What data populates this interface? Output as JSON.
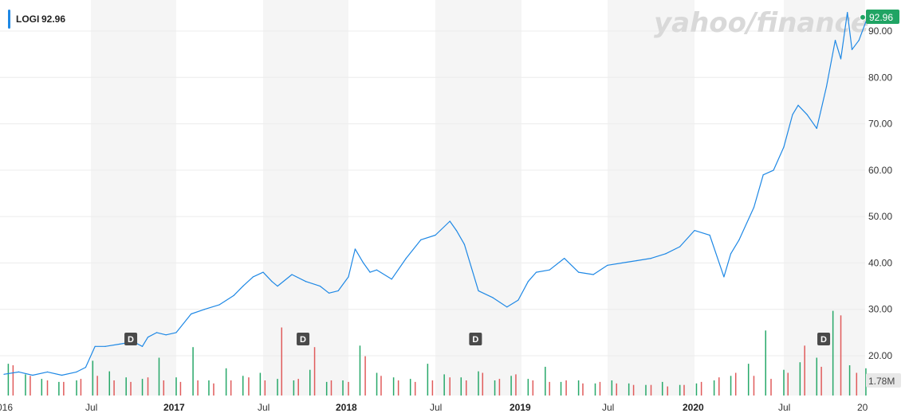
{
  "legend": {
    "symbol": "LOGI",
    "value": "92.96"
  },
  "watermark": "yahoo/finance",
  "price_badge": "92.96",
  "volume_badge": "1.78M",
  "colors": {
    "line": "#1e88e5",
    "badge": "#20a464",
    "band": "#f5f5f5",
    "grid": "#ececec",
    "vol_up": "#27a869",
    "vol_down": "#e05b5b",
    "dividend": "#4a4a4a"
  },
  "chart_data": {
    "type": "line",
    "title": "",
    "series": [
      {
        "name": "LOGI",
        "values": []
      }
    ],
    "y_ticks": [
      "20.00",
      "30.00",
      "40.00",
      "50.00",
      "60.00",
      "70.00",
      "80.00",
      "90.00"
    ],
    "ylim": [
      15,
      95
    ],
    "x_ticks": [
      "016",
      "Jul",
      "2017",
      "Jul",
      "2018",
      "Jul",
      "2019",
      "Jul",
      "2020",
      "Jul",
      "20"
    ],
    "dividend_label": "D",
    "dividends": [
      "2016-09",
      "2017-09",
      "2018-09",
      "2020-09"
    ],
    "price": [
      [
        "2016-01-01",
        16
      ],
      [
        "2016-02-01",
        16.5
      ],
      [
        "2016-03-01",
        15.8
      ],
      [
        "2016-04-01",
        16.5
      ],
      [
        "2016-05-01",
        15.8
      ],
      [
        "2016-06-01",
        16.5
      ],
      [
        "2016-06-20",
        17.5
      ],
      [
        "2016-07-10",
        22
      ],
      [
        "2016-08-01",
        22
      ],
      [
        "2016-09-01",
        22.5
      ],
      [
        "2016-10-01",
        23
      ],
      [
        "2016-10-20",
        22
      ],
      [
        "2016-11-01",
        24
      ],
      [
        "2016-11-20",
        25
      ],
      [
        "2016-12-10",
        24.5
      ],
      [
        "2017-01-01",
        25
      ],
      [
        "2017-02-01",
        29
      ],
      [
        "2017-03-01",
        30
      ],
      [
        "2017-04-01",
        31
      ],
      [
        "2017-05-01",
        33
      ],
      [
        "2017-05-20",
        35
      ],
      [
        "2017-06-10",
        37
      ],
      [
        "2017-07-01",
        38
      ],
      [
        "2017-07-20",
        36
      ],
      [
        "2017-08-01",
        35
      ],
      [
        "2017-09-01",
        37.5
      ],
      [
        "2017-10-01",
        36
      ],
      [
        "2017-11-01",
        35
      ],
      [
        "2017-11-20",
        33.5
      ],
      [
        "2017-12-10",
        34
      ],
      [
        "2018-01-01",
        37
      ],
      [
        "2018-01-15",
        43
      ],
      [
        "2018-02-01",
        40
      ],
      [
        "2018-02-15",
        38
      ],
      [
        "2018-03-01",
        38.5
      ],
      [
        "2018-04-01",
        36.5
      ],
      [
        "2018-05-01",
        41
      ],
      [
        "2018-06-01",
        45
      ],
      [
        "2018-07-01",
        46
      ],
      [
        "2018-08-01",
        49
      ],
      [
        "2018-08-15",
        47
      ],
      [
        "2018-09-01",
        44
      ],
      [
        "2018-10-01",
        34
      ],
      [
        "2018-11-01",
        32.5
      ],
      [
        "2018-12-01",
        30.5
      ],
      [
        "2018-12-25",
        32
      ],
      [
        "2019-01-15",
        36
      ],
      [
        "2019-02-01",
        38
      ],
      [
        "2019-03-01",
        38.5
      ],
      [
        "2019-04-01",
        41
      ],
      [
        "2019-05-01",
        38
      ],
      [
        "2019-06-01",
        37.5
      ],
      [
        "2019-07-01",
        39.5
      ],
      [
        "2019-08-01",
        40
      ],
      [
        "2019-09-01",
        40.5
      ],
      [
        "2019-10-01",
        41
      ],
      [
        "2019-11-01",
        42
      ],
      [
        "2019-12-01",
        43.5
      ],
      [
        "2020-01-01",
        47
      ],
      [
        "2020-02-01",
        46
      ],
      [
        "2020-03-01",
        37
      ],
      [
        "2020-03-15",
        42
      ],
      [
        "2020-04-01",
        45
      ],
      [
        "2020-05-01",
        52
      ],
      [
        "2020-05-20",
        59
      ],
      [
        "2020-06-10",
        60
      ],
      [
        "2020-07-01",
        65
      ],
      [
        "2020-07-20",
        72
      ],
      [
        "2020-08-01",
        74
      ],
      [
        "2020-08-20",
        72
      ],
      [
        "2020-09-10",
        69
      ],
      [
        "2020-10-01",
        78
      ],
      [
        "2020-10-20",
        88
      ],
      [
        "2020-11-01",
        84
      ],
      [
        "2020-11-15",
        94
      ],
      [
        "2020-11-25",
        86
      ],
      [
        "2020-12-10",
        88
      ],
      [
        "2020-12-25",
        92
      ],
      [
        "2021-01-05",
        92.96
      ]
    ],
    "volume_up": [
      [
        "2016-01-10",
        2.1
      ],
      [
        "2016-02-15",
        1.4
      ],
      [
        "2016-03-20",
        1.1
      ],
      [
        "2016-04-25",
        0.9
      ],
      [
        "2016-06-01",
        1.0
      ],
      [
        "2016-07-05",
        2.3
      ],
      [
        "2016-08-10",
        1.6
      ],
      [
        "2016-09-15",
        1.2
      ],
      [
        "2016-10-20",
        1.1
      ],
      [
        "2016-11-25",
        2.5
      ],
      [
        "2017-01-01",
        1.2
      ],
      [
        "2017-02-05",
        3.2
      ],
      [
        "2017-03-10",
        1.0
      ],
      [
        "2017-04-15",
        1.8
      ],
      [
        "2017-05-20",
        1.3
      ],
      [
        "2017-06-25",
        1.5
      ],
      [
        "2017-08-01",
        1.1
      ],
      [
        "2017-09-05",
        1.0
      ],
      [
        "2017-10-10",
        1.7
      ],
      [
        "2017-11-15",
        0.9
      ],
      [
        "2017-12-20",
        1.0
      ],
      [
        "2018-01-25",
        3.3
      ],
      [
        "2018-03-01",
        1.5
      ],
      [
        "2018-04-05",
        1.2
      ],
      [
        "2018-05-10",
        1.1
      ],
      [
        "2018-06-15",
        2.1
      ],
      [
        "2018-07-20",
        1.4
      ],
      [
        "2018-08-25",
        1.2
      ],
      [
        "2018-10-01",
        1.6
      ],
      [
        "2018-11-05",
        1.0
      ],
      [
        "2018-12-10",
        1.3
      ],
      [
        "2019-01-15",
        1.1
      ],
      [
        "2019-02-20",
        1.9
      ],
      [
        "2019-03-25",
        0.9
      ],
      [
        "2019-05-01",
        1.0
      ],
      [
        "2019-06-05",
        0.8
      ],
      [
        "2019-07-10",
        1.0
      ],
      [
        "2019-08-15",
        0.8
      ],
      [
        "2019-09-20",
        0.7
      ],
      [
        "2019-10-25",
        0.9
      ],
      [
        "2019-12-01",
        0.7
      ],
      [
        "2020-01-05",
        0.8
      ],
      [
        "2020-02-10",
        1.0
      ],
      [
        "2020-03-15",
        1.3
      ],
      [
        "2020-04-20",
        2.1
      ],
      [
        "2020-05-25",
        4.3
      ],
      [
        "2020-07-01",
        1.7
      ],
      [
        "2020-08-05",
        2.2
      ],
      [
        "2020-09-10",
        2.5
      ],
      [
        "2020-10-15",
        5.6
      ],
      [
        "2020-11-20",
        2.0
      ],
      [
        "2020-12-25",
        1.8
      ]
    ],
    "volume_down": [
      [
        "2016-01-20",
        2.0
      ],
      [
        "2016-02-25",
        1.3
      ],
      [
        "2016-04-01",
        1.0
      ],
      [
        "2016-05-05",
        0.9
      ],
      [
        "2016-06-10",
        1.1
      ],
      [
        "2016-07-15",
        1.3
      ],
      [
        "2016-08-20",
        1.0
      ],
      [
        "2016-09-25",
        0.9
      ],
      [
        "2016-11-01",
        1.2
      ],
      [
        "2016-12-05",
        1.0
      ],
      [
        "2017-01-10",
        0.9
      ],
      [
        "2017-02-15",
        1.0
      ],
      [
        "2017-03-20",
        0.8
      ],
      [
        "2017-04-25",
        1.0
      ],
      [
        "2017-06-01",
        1.2
      ],
      [
        "2017-07-05",
        1.0
      ],
      [
        "2017-08-10",
        4.5
      ],
      [
        "2017-09-15",
        1.1
      ],
      [
        "2017-10-20",
        3.2
      ],
      [
        "2017-11-25",
        1.0
      ],
      [
        "2018-01-01",
        0.9
      ],
      [
        "2018-02-05",
        2.6
      ],
      [
        "2018-03-10",
        1.3
      ],
      [
        "2018-04-15",
        1.0
      ],
      [
        "2018-05-20",
        0.9
      ],
      [
        "2018-06-25",
        1.0
      ],
      [
        "2018-08-01",
        1.2
      ],
      [
        "2018-09-05",
        1.0
      ],
      [
        "2018-10-10",
        1.5
      ],
      [
        "2018-11-15",
        1.1
      ],
      [
        "2018-12-20",
        1.4
      ],
      [
        "2019-01-25",
        1.0
      ],
      [
        "2019-03-01",
        0.9
      ],
      [
        "2019-04-05",
        1.0
      ],
      [
        "2019-05-10",
        0.8
      ],
      [
        "2019-06-15",
        0.9
      ],
      [
        "2019-07-20",
        0.8
      ],
      [
        "2019-08-25",
        0.7
      ],
      [
        "2019-10-01",
        0.7
      ],
      [
        "2019-11-05",
        0.6
      ],
      [
        "2019-12-10",
        0.7
      ],
      [
        "2020-01-15",
        0.9
      ],
      [
        "2020-02-20",
        1.2
      ],
      [
        "2020-03-25",
        1.5
      ],
      [
        "2020-05-01",
        1.3
      ],
      [
        "2020-06-05",
        1.1
      ],
      [
        "2020-07-10",
        1.5
      ],
      [
        "2020-08-15",
        3.3
      ],
      [
        "2020-09-20",
        1.9
      ],
      [
        "2020-11-01",
        5.3
      ],
      [
        "2020-12-05",
        1.5
      ]
    ]
  }
}
